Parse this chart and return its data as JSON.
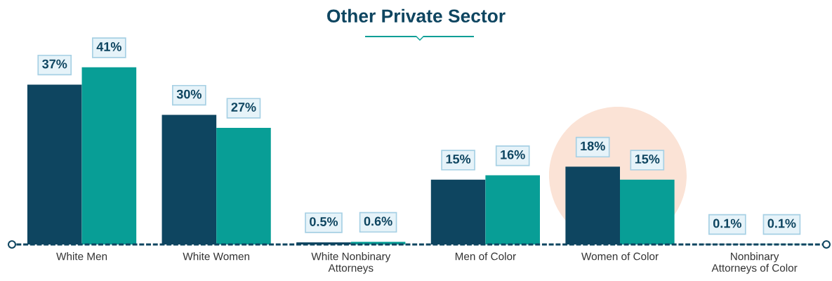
{
  "chart_data": {
    "type": "bar",
    "title": "Other Private Sector",
    "categories": [
      "White Men",
      "White Women",
      "White Nonbinary\nAttorneys",
      "Men of Color",
      "Women of Color",
      "Nonbinary\nAttorneys of Color"
    ],
    "series": [
      {
        "color": "#0e4560",
        "values": [
          37,
          30,
          0.5,
          15,
          18,
          0.1
        ],
        "value_labels": [
          "37%",
          "30%",
          "0.5%",
          "15%",
          "18%",
          "0.1%"
        ]
      },
      {
        "color": "#089e96",
        "values": [
          41,
          27,
          0.6,
          16,
          15,
          0.1
        ],
        "value_labels": [
          "41%",
          "27%",
          "0.6%",
          "16%",
          "15%",
          "0.1%"
        ]
      }
    ],
    "grid": false,
    "legend": false
  }
}
